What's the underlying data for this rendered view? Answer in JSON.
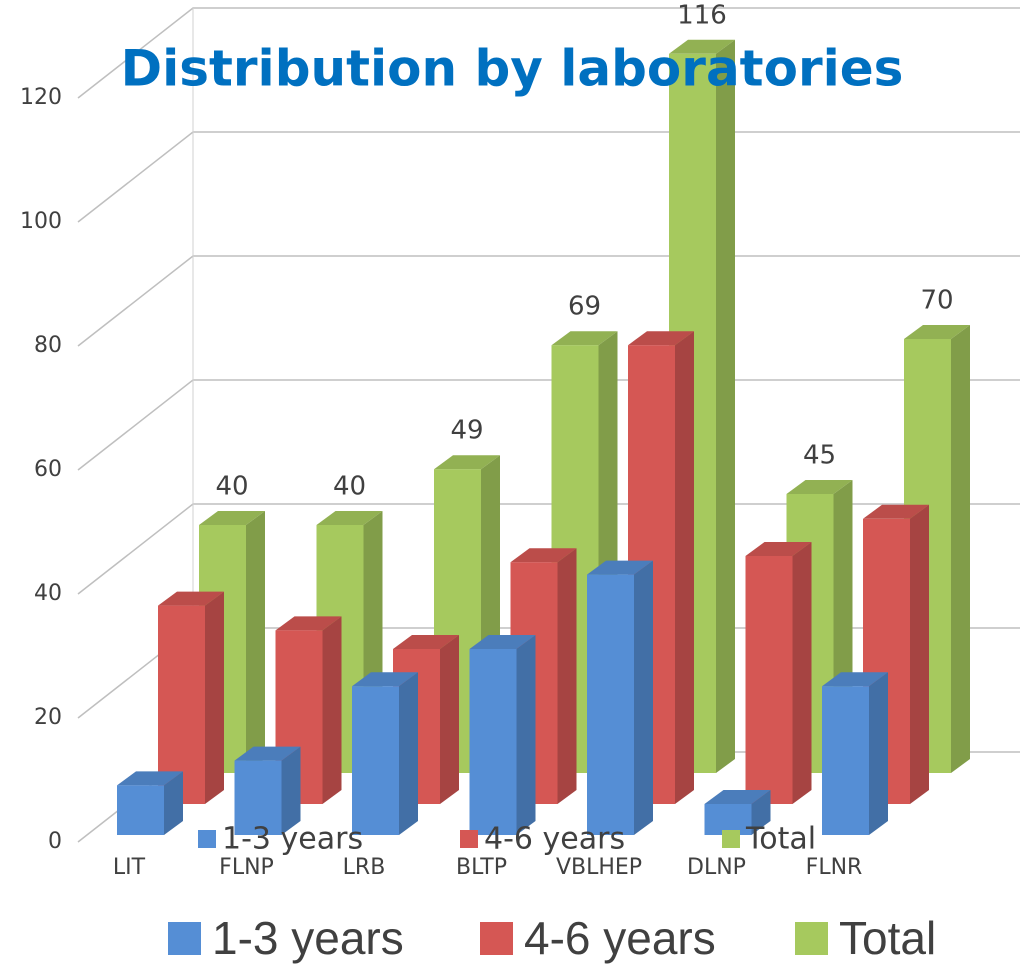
{
  "chart_data": {
    "type": "bar3d",
    "title": "Distribution by laboratories",
    "categories": [
      "LIT",
      "FLNP",
      "LRB",
      "BLTP",
      "VBLHEP",
      "DLNP",
      "FLNR"
    ],
    "series": [
      {
        "name": "1-3 years",
        "color": "#558ed5",
        "values": [
          8,
          12,
          24,
          30,
          42,
          5,
          24
        ]
      },
      {
        "name": "4-6 years",
        "color": "#d55754",
        "values": [
          32,
          28,
          25,
          39,
          74,
          40,
          46
        ]
      },
      {
        "name": "Total",
        "color": "#a6c95e",
        "values": [
          40,
          40,
          49,
          69,
          116,
          45,
          70
        ]
      }
    ],
    "labeled_series": 2,
    "ylim": [
      0,
      120
    ],
    "yticks": [
      0,
      20,
      40,
      60,
      80,
      100,
      120
    ],
    "grid": true
  }
}
